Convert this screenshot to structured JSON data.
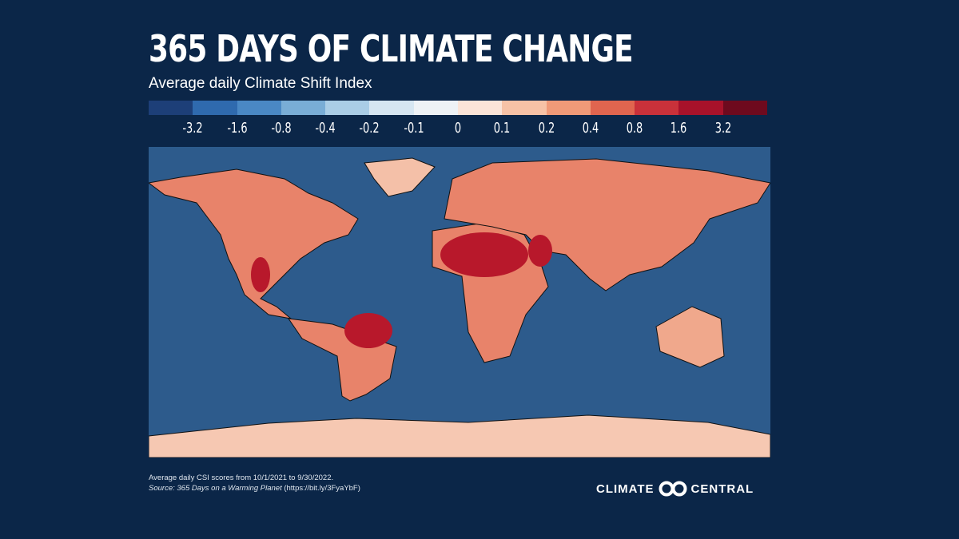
{
  "title": "365 DAYS OF CLIMATE CHANGE",
  "subtitle": "Average daily Climate Shift Index",
  "legend": {
    "colors": [
      "#1d3f78",
      "#2f6aae",
      "#4a88c4",
      "#79add6",
      "#aacde6",
      "#d6e6f2",
      "#eef2f6",
      "#fbe4d8",
      "#f7c2a6",
      "#f09a78",
      "#e0654f",
      "#c9313a",
      "#a8122a",
      "#6e0a1e"
    ],
    "ticks": [
      "-3.2",
      "-1.6",
      "-0.8",
      "-0.4",
      "-0.2",
      "-0.1",
      "0",
      "0.1",
      "0.2",
      "0.4",
      "0.8",
      "1.6",
      "3.2"
    ]
  },
  "map": {
    "ocean_color": "#2d5b8c",
    "land_typical_color": "#e8836a",
    "land_hot_color": "#b8182b"
  },
  "footnote": {
    "line1": "Average daily CSI scores from 10/1/2021 to 9/30/2022.",
    "source_prefix": "Source: ",
    "source_title": "365 Days on a Warming Planet",
    "source_link": " (https://bit.ly/3FyaYbF)"
  },
  "logo": {
    "left": "CLIMATE",
    "right": "CENTRAL"
  }
}
